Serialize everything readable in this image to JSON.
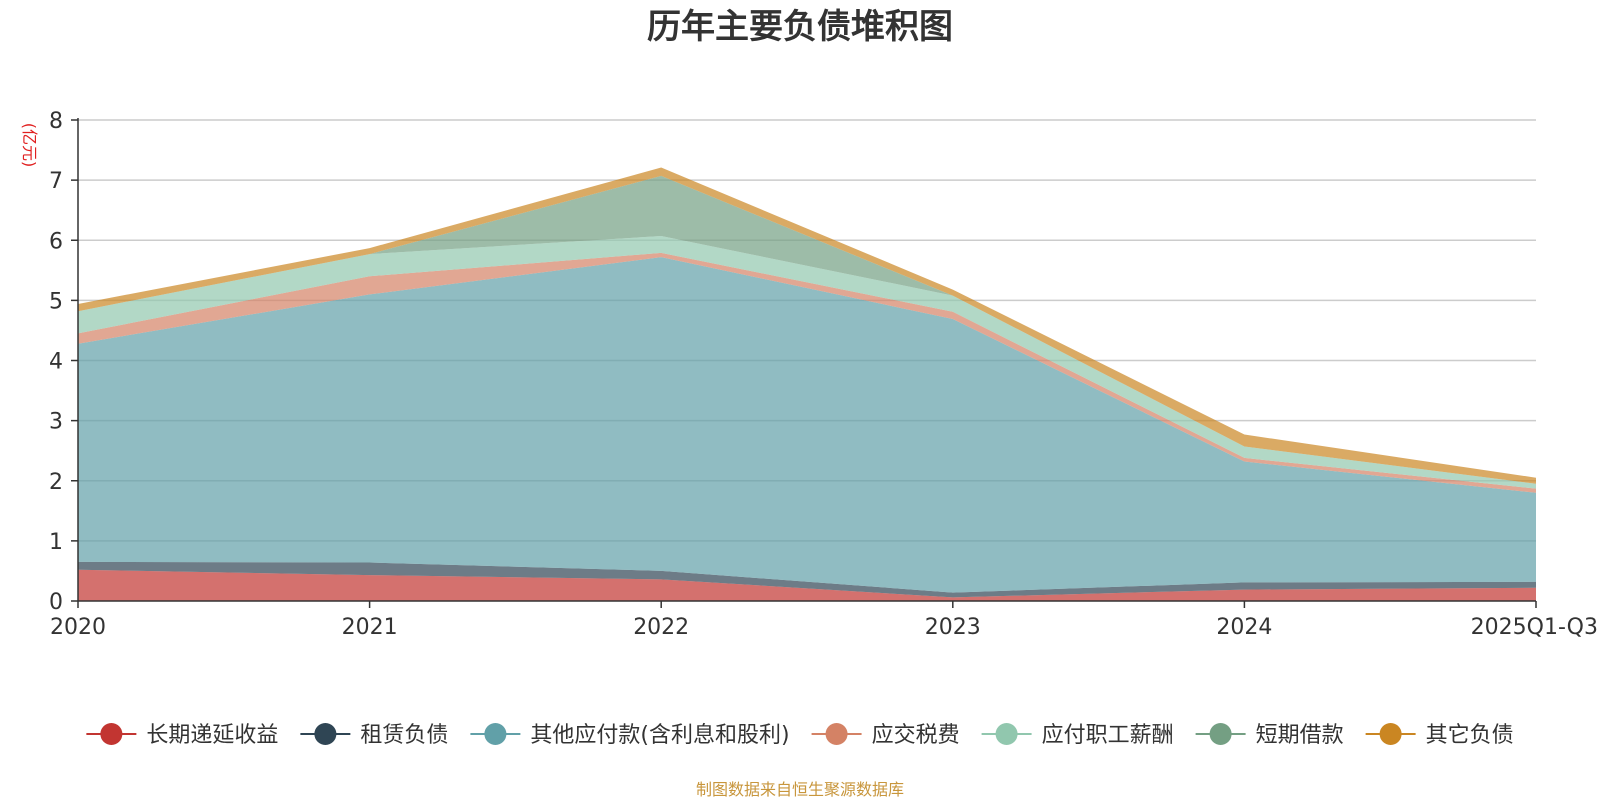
{
  "chart_data": {
    "type": "area",
    "stacked": true,
    "title": "历年主要负债堆积图",
    "ylabel": "(亿元)",
    "xlabel": "",
    "ylim": [
      0,
      8
    ],
    "yticks": [
      0,
      1,
      2,
      3,
      4,
      5,
      6,
      7,
      8
    ],
    "grid": true,
    "legend_position": "bottom",
    "categories": [
      "2020",
      "2021",
      "2022",
      "2023",
      "2024",
      "2025Q1-Q3"
    ],
    "series": [
      {
        "name": "长期递延收益",
        "color": "#c23531",
        "values": [
          0.52,
          0.43,
          0.36,
          0.06,
          0.19,
          0.22
        ]
      },
      {
        "name": "租赁负债",
        "color": "#2f4554",
        "values": [
          0.13,
          0.21,
          0.14,
          0.08,
          0.12,
          0.1
        ]
      },
      {
        "name": "其他应付款(含利息和股利)",
        "color": "#61a0a8",
        "values": [
          3.63,
          4.46,
          5.22,
          4.55,
          2.01,
          1.48
        ]
      },
      {
        "name": "应交税费",
        "color": "#d48265",
        "values": [
          0.17,
          0.3,
          0.07,
          0.12,
          0.06,
          0.07
        ]
      },
      {
        "name": "应付职工薪酬",
        "color": "#91c7ae",
        "values": [
          0.37,
          0.37,
          0.28,
          0.27,
          0.19,
          0.08
        ]
      },
      {
        "name": "短期借款",
        "color": "#749f83",
        "values": [
          0.0,
          0.0,
          1.0,
          0.0,
          0.0,
          0.0
        ]
      },
      {
        "name": "其它负债",
        "color": "#ca8622",
        "values": [
          0.12,
          0.1,
          0.14,
          0.1,
          0.2,
          0.1
        ]
      }
    ],
    "source": "制图数据来自恒生聚源数据库"
  }
}
